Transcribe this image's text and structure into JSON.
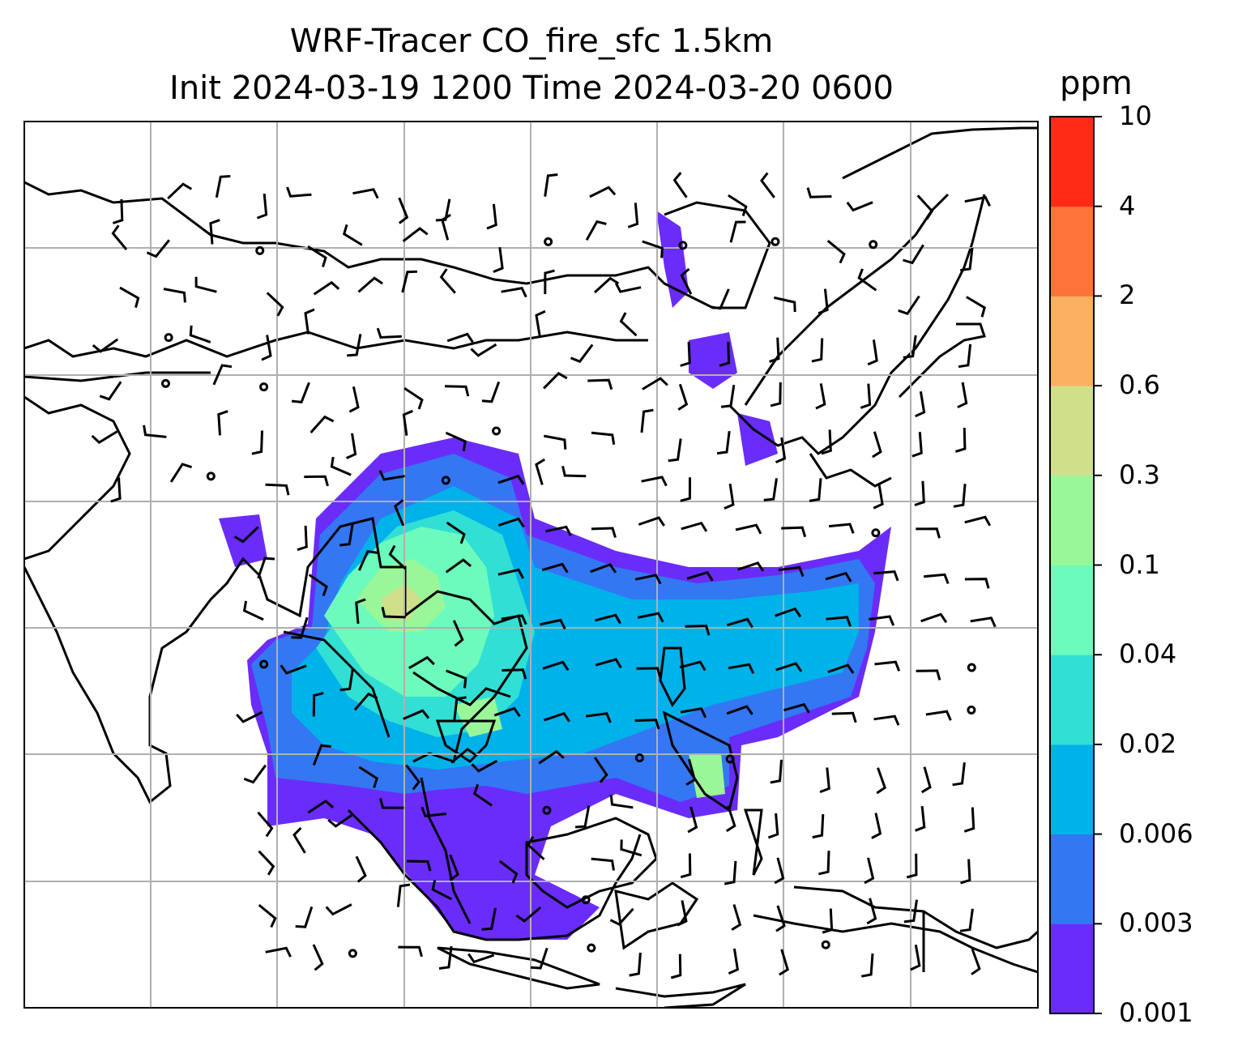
{
  "title_line1": "WRF-Tracer CO_fire_sfc 1.5km",
  "title_line2": "Init 2024-03-19 1200 Time 2024-03-20 0600",
  "colorbar": {
    "unit": "ppm",
    "levels": [
      "0.001",
      "0.003",
      "0.006",
      "0.02",
      "0.04",
      "0.1",
      "0.3",
      "0.6",
      "2",
      "4",
      "10"
    ],
    "colors": [
      "#6a2cf9",
      "#3377f2",
      "#00b2ea",
      "#31dfd4",
      "#6cfbbd",
      "#99f799",
      "#d0e08a",
      "#fbb062",
      "#fe7339",
      "#ff2b17"
    ]
  },
  "map_layers": {
    "coastlines": true,
    "gridlines": true,
    "wind_barbs": true,
    "fill_variable": "CO_fire_sfc"
  }
}
